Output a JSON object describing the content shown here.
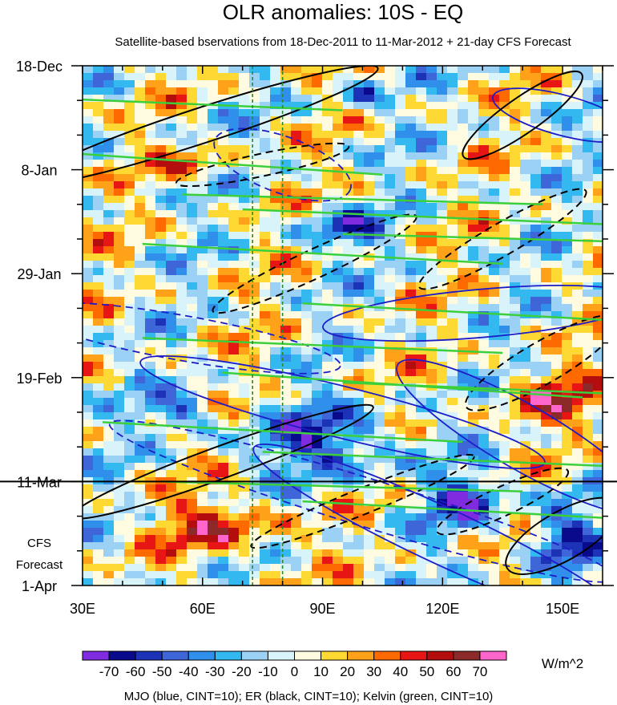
{
  "chart_data": {
    "type": "heatmap",
    "title": "OLR anomalies: 10S - EQ",
    "subtitle": "Satellite-based bservations from 18-Dec-2011 to 11-Mar-2012 + 21-day CFS Forecast",
    "x_axis": {
      "ticks": [
        "30E",
        "60E",
        "90E",
        "120E",
        "150E"
      ],
      "tick_values": [
        30,
        60,
        90,
        120,
        150
      ],
      "range": [
        30,
        160
      ]
    },
    "y_axis": {
      "ticks": [
        "18-Dec",
        "8-Jan",
        "29-Jan",
        "19-Feb",
        "11-Mar",
        "1-Apr"
      ],
      "tick_days": [
        0,
        21,
        42,
        63,
        84,
        105
      ],
      "range_days": [
        0,
        105
      ]
    },
    "forecast_label_line1": "CFS",
    "forecast_label_line2": "Forecast",
    "forecast_start_day": 84,
    "reference_lines_lon": [
      72.5,
      80
    ],
    "colorbar": {
      "levels": [
        "-70",
        "-60",
        "-50",
        "-40",
        "-30",
        "-20",
        "-10",
        "0",
        "10",
        "20",
        "30",
        "40",
        "50",
        "60",
        "70"
      ],
      "colors": [
        "#7f2be0",
        "#0a0a8c",
        "#1c33b8",
        "#3f66d9",
        "#2f8fea",
        "#33b8f0",
        "#9ad1f5",
        "#d9f3fb",
        "#fffbe0",
        "#ffd933",
        "#ffa21a",
        "#ff6a00",
        "#e81515",
        "#b40d0d",
        "#8c2a2a",
        "#ff66cc"
      ],
      "units": "W/m^2"
    },
    "footer": "MJO (blue, CINT=10); ER (black, CINT=10); Kelvin (green, CINT=10)"
  },
  "colors": {
    "mjo": "#1c1cc8",
    "er": "#000000",
    "kelvin": "#3ccf3c",
    "refline": "#2a8a2a"
  }
}
